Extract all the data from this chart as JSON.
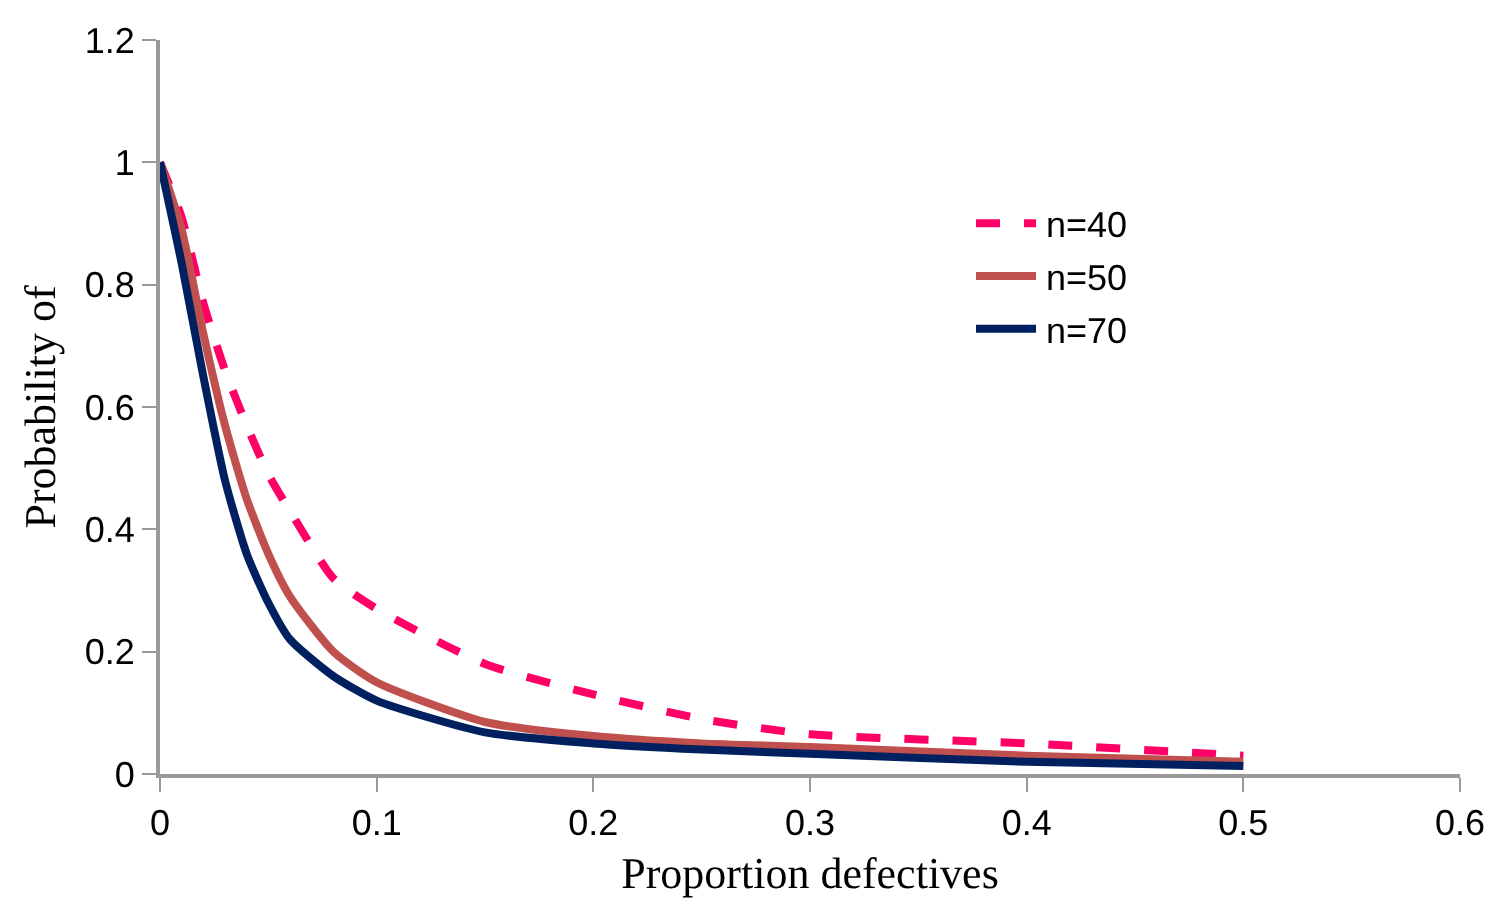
{
  "chart_data": {
    "type": "line",
    "xlabel": "Proportion defectives",
    "ylabel": "Probability of",
    "xlim": [
      0,
      0.6
    ],
    "xticks": [
      0,
      0.1,
      0.2,
      0.3,
      0.4,
      0.5,
      0.6
    ],
    "ylim": [
      0,
      1.2
    ],
    "yticks": [
      0,
      0.2,
      0.4,
      0.6,
      0.8,
      1,
      1.2
    ],
    "x": [
      0,
      0.01,
      0.02,
      0.03,
      0.04,
      0.05,
      0.06,
      0.08,
      0.1,
      0.15,
      0.2,
      0.25,
      0.3,
      0.4,
      0.5
    ],
    "grid": false,
    "legend": "right",
    "marker": "none",
    "series": [
      {
        "name": "n=40",
        "color": "#ff0066",
        "line_style": "dashed",
        "values": [
          1,
          0.91,
          0.77,
          0.66,
          0.57,
          0.49,
          0.43,
          0.32,
          0.27,
          0.18,
          0.13,
          0.09,
          0.065,
          0.05,
          0.03
        ]
      },
      {
        "name": "n=50",
        "color": "#c0504d",
        "line_style": "solid",
        "values": [
          1,
          0.89,
          0.72,
          0.57,
          0.45,
          0.36,
          0.29,
          0.2,
          0.15,
          0.085,
          0.062,
          0.05,
          0.044,
          0.03,
          0.02
        ]
      },
      {
        "name": "n=70",
        "color": "#002060",
        "line_style": "solid",
        "values": [
          1,
          0.835,
          0.65,
          0.48,
          0.36,
          0.28,
          0.22,
          0.16,
          0.12,
          0.068,
          0.05,
          0.04,
          0.033,
          0.02,
          0.013
        ]
      }
    ]
  }
}
